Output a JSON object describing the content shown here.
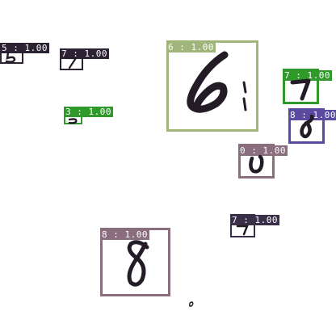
{
  "image": {
    "background": "#ffffff"
  },
  "detections": [
    {
      "label": "5 : 1.00",
      "color": "#2b2233",
      "digit": "5"
    },
    {
      "label": "7 : 1.00",
      "color": "#2b2233",
      "digit": "7"
    },
    {
      "label": "3 : 1.00",
      "color": "#2f9a2a",
      "digit": "3"
    },
    {
      "label": "6 : 1.00",
      "color": "#9fb57a",
      "digit": "6"
    },
    {
      "label": "7 : 1.00",
      "color": "#2f9a2a",
      "digit": "7"
    },
    {
      "label": "8 : 1.00",
      "color": "#5a4aa0",
      "digit": "8"
    },
    {
      "label": "0 : 1.00",
      "color": "#8a6e7e",
      "digit": "0"
    },
    {
      "label": "7 : 1.00",
      "color": "#3a2f48",
      "digit": "7"
    },
    {
      "label": "8 : 1.00",
      "color": "#8a6e7e",
      "digit": "8"
    }
  ],
  "ink_color": "#231c26"
}
